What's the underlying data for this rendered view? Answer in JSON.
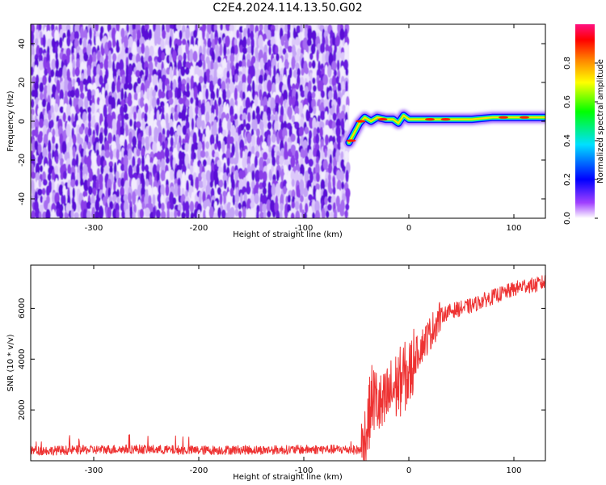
{
  "title": "C2E4.2024.114.13.50.G02",
  "chart_data": [
    {
      "type": "heatmap",
      "xlabel": "Height of straight line (km)",
      "ylabel": "Frequency (Hz)",
      "xlim": [
        -360,
        130
      ],
      "ylim": [
        -50,
        50
      ],
      "xticks": [
        -300,
        -200,
        -100,
        0,
        100
      ],
      "xtick_labels": [
        "-300",
        "-200",
        "-100",
        "0",
        "100"
      ],
      "yticks": [
        -40,
        -20,
        0,
        20,
        40
      ],
      "ytick_labels": [
        "-40",
        "-20",
        "0",
        "20",
        "40"
      ],
      "noise_region_x": [
        -360,
        -57
      ],
      "ridge": [
        {
          "x": -57,
          "y": -11
        },
        {
          "x": -52,
          "y": -6
        },
        {
          "x": -47,
          "y": -1
        },
        {
          "x": -42,
          "y": 2
        },
        {
          "x": -36,
          "y": 0
        },
        {
          "x": -30,
          "y": 2
        },
        {
          "x": -22,
          "y": 1
        },
        {
          "x": -15,
          "y": 1
        },
        {
          "x": -10,
          "y": -1
        },
        {
          "x": -5,
          "y": 3
        },
        {
          "x": 0,
          "y": 1
        },
        {
          "x": 20,
          "y": 1
        },
        {
          "x": 40,
          "y": 1
        },
        {
          "x": 60,
          "y": 1
        },
        {
          "x": 80,
          "y": 2
        },
        {
          "x": 100,
          "y": 2
        },
        {
          "x": 130,
          "y": 2
        }
      ],
      "colorbar": {
        "label": "Normalized spectral amplitude",
        "range": [
          0,
          1
        ],
        "ticks": [
          0.0,
          0.2,
          0.4,
          0.6,
          0.8
        ],
        "tick_labels": [
          "0.0",
          "0.2",
          "0.4",
          "0.6",
          "0.8"
        ],
        "colors": [
          "#ffffff",
          "#a040ff",
          "#0000ff",
          "#00e0ff",
          "#00ff00",
          "#ffff00",
          "#ff8000",
          "#ff0000",
          "#ff1080"
        ]
      }
    },
    {
      "type": "line",
      "xlabel": "Height of straight line (km)",
      "ylabel": "SNR (10 * v/v)",
      "xlim": [
        -360,
        130
      ],
      "ylim": [
        0,
        7700
      ],
      "xticks": [
        -300,
        -200,
        -100,
        0,
        100
      ],
      "xtick_labels": [
        "-300",
        "-200",
        "-100",
        "0",
        "100"
      ],
      "yticks": [
        2000,
        4000,
        6000
      ],
      "ytick_labels": [
        "2000",
        "4000",
        "6000"
      ],
      "color": "#ee3333",
      "series": [
        {
          "x": [
            -360,
            -340,
            -320,
            -300,
            -280,
            -260,
            -240,
            -220,
            -200,
            -180,
            -160,
            -140,
            -120,
            -100,
            -80,
            -60,
            -45,
            -40,
            -35,
            -30,
            -25,
            -20,
            -15,
            -10,
            -5,
            0,
            5,
            10,
            20,
            30,
            40,
            50,
            60,
            70,
            80,
            90,
            100,
            110,
            120,
            130
          ],
          "values": [
            400,
            400,
            420,
            430,
            450,
            460,
            440,
            420,
            410,
            420,
            430,
            420,
            430,
            440,
            450,
            440,
            420,
            1200,
            2500,
            2300,
            2000,
            2500,
            2800,
            3000,
            3300,
            3300,
            4000,
            4400,
            5000,
            5700,
            5900,
            6000,
            6100,
            6300,
            6450,
            6600,
            6750,
            6900,
            6900,
            7050
          ]
        }
      ]
    }
  ]
}
